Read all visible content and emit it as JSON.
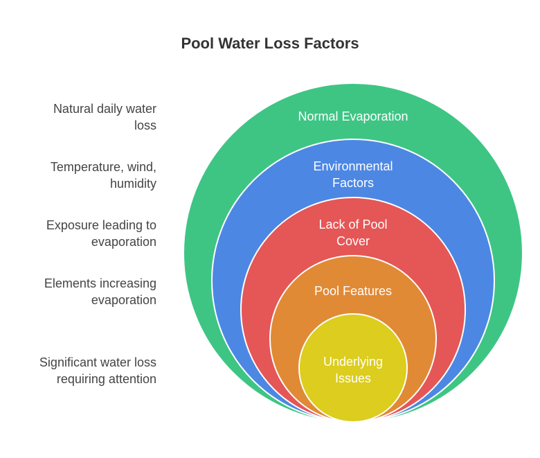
{
  "title": "Pool Water Loss Factors",
  "layers": [
    {
      "label_lines": [
        "Normal Evaporation"
      ],
      "description_lines": [
        "Natural daily water",
        "loss"
      ],
      "color": "#3EC584"
    },
    {
      "label_lines": [
        "Environmental",
        "Factors"
      ],
      "description_lines": [
        "Temperature, wind,",
        "humidity"
      ],
      "color": "#4C87E4"
    },
    {
      "label_lines": [
        "Lack of Pool",
        "Cover"
      ],
      "description_lines": [
        "Exposure leading to",
        "evaporation"
      ],
      "color": "#E55656"
    },
    {
      "label_lines": [
        "Pool Features"
      ],
      "description_lines": [
        "Elements increasing",
        "evaporation"
      ],
      "color": "#E08A36"
    },
    {
      "label_lines": [
        "Underlying",
        "Issues"
      ],
      "description_lines": [
        "Significant water loss",
        "requiring attention"
      ],
      "color": "#DCCD1E"
    }
  ]
}
